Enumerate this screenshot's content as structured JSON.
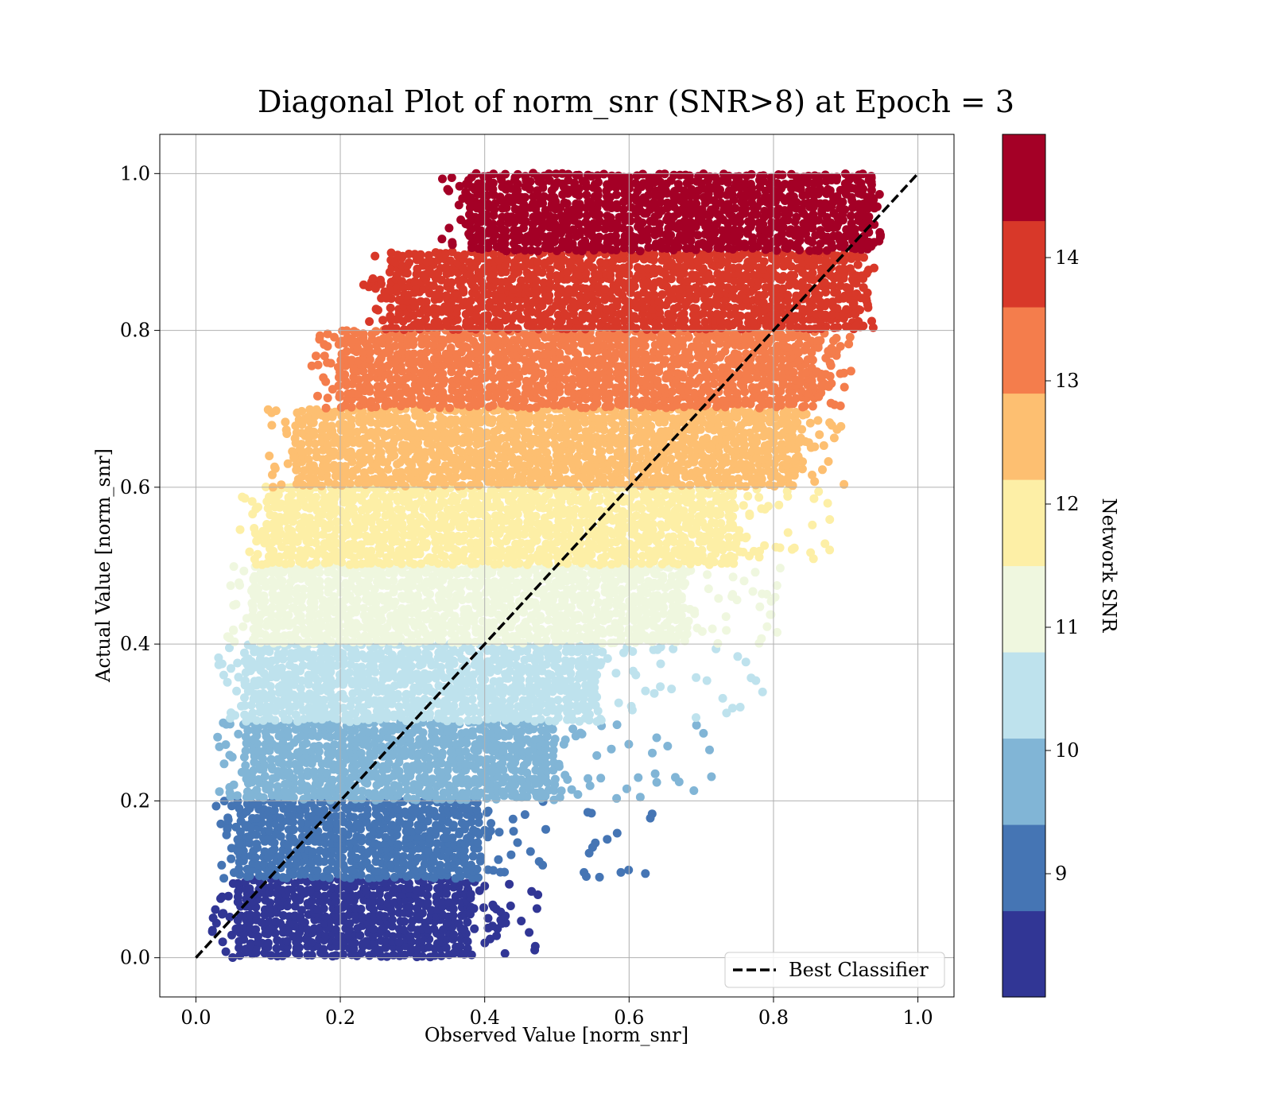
{
  "chart_data": {
    "type": "scatter",
    "title": "Diagonal Plot of norm_snr (SNR>8) at Epoch = 3",
    "xlabel": "Observed Value [norm_snr]",
    "ylabel": "Actual Value [norm_snr]",
    "xlim": [
      -0.05,
      1.05
    ],
    "ylim": [
      -0.05,
      1.05
    ],
    "x_ticks": [
      "0.0",
      "0.2",
      "0.4",
      "0.6",
      "0.8",
      "1.0"
    ],
    "y_ticks": [
      "0.0",
      "0.2",
      "0.4",
      "0.6",
      "0.8",
      "1.0"
    ],
    "grid": true,
    "legend": {
      "entries": [
        "Best Classifier"
      ],
      "placement": "lower-right"
    },
    "reference_line": {
      "name": "Best Classifier",
      "style": "dashed",
      "color": "#000000",
      "x": [
        0.0,
        1.0
      ],
      "y": [
        0.0,
        1.0
      ]
    },
    "colorbar": {
      "label": "Network SNR",
      "range": [
        8,
        15
      ],
      "ticks": [
        "9",
        "10",
        "11",
        "12",
        "13",
        "14"
      ],
      "tick_values": [
        9,
        10,
        11,
        12,
        13,
        14
      ],
      "colors": [
        "#313695",
        "#4575b4",
        "#81b5d6",
        "#bee2ed",
        "#eff7df",
        "#fdefa6",
        "#fdbf71",
        "#f47d4c",
        "#d83829",
        "#a40026"
      ]
    },
    "bands": [
      {
        "y": [
          0.0,
          0.1
        ],
        "color": "#313695",
        "dense_x": [
          0.06,
          0.38
        ],
        "sparse_x_max": 0.48
      },
      {
        "y": [
          0.1,
          0.2
        ],
        "color": "#4575b4",
        "dense_x": [
          0.06,
          0.4
        ],
        "sparse_x_max": 0.64
      },
      {
        "y": [
          0.2,
          0.3
        ],
        "color": "#81b5d6",
        "dense_x": [
          0.07,
          0.5
        ],
        "sparse_x_max": 0.73
      },
      {
        "y": [
          0.3,
          0.4
        ],
        "color": "#bee2ed",
        "dense_x": [
          0.07,
          0.56
        ],
        "sparse_x_max": 0.8
      },
      {
        "y": [
          0.4,
          0.5
        ],
        "color": "#eff7df",
        "dense_x": [
          0.08,
          0.68
        ],
        "sparse_x_max": 0.82
      },
      {
        "y": [
          0.5,
          0.6
        ],
        "color": "#fdefa6",
        "dense_x": [
          0.1,
          0.75
        ],
        "sparse_x_max": 0.88
      },
      {
        "y": [
          0.6,
          0.7
        ],
        "color": "#fdbf71",
        "dense_x": [
          0.14,
          0.83
        ],
        "sparse_x_max": 0.9
      },
      {
        "y": [
          0.7,
          0.8
        ],
        "color": "#f47d4c",
        "dense_x": [
          0.2,
          0.86
        ],
        "sparse_x_max": 0.91
      },
      {
        "y": [
          0.8,
          0.9
        ],
        "color": "#d83829",
        "dense_x": [
          0.27,
          0.91
        ],
        "sparse_x_max": 0.94
      },
      {
        "y": [
          0.9,
          1.0
        ],
        "color": "#a40026",
        "dense_x": [
          0.38,
          0.93
        ],
        "sparse_x_max": 0.95
      }
    ]
  }
}
